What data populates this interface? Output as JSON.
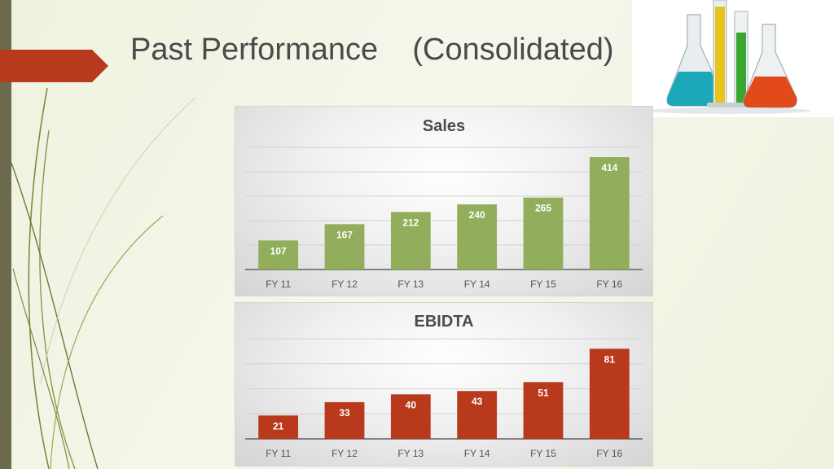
{
  "slide": {
    "title": "Past Performance    (Consolidated)",
    "accent_color": "#b8391c",
    "side_bar_color": "#6b6a4c",
    "image": "laboratory-glassware-photo"
  },
  "chart_data": [
    {
      "type": "bar",
      "title": "Sales",
      "categories": [
        "FY 11",
        "FY 12",
        "FY 13",
        "FY 14",
        "FY 15",
        "FY 16"
      ],
      "values": [
        107,
        167,
        212,
        240,
        265,
        414
      ],
      "data_labels": [
        "107",
        "167",
        "212",
        "240",
        "265",
        "414"
      ],
      "bar_color": "#92ad5c",
      "ylim": [
        0,
        450
      ],
      "grid": true,
      "legend": "none"
    },
    {
      "type": "bar",
      "title": "EBIDTA",
      "categories": [
        "FY 11",
        "FY 12",
        "FY 13",
        "FY 14",
        "FY 15",
        "FY 16"
      ],
      "values": [
        21,
        33,
        40,
        43,
        51,
        81
      ],
      "data_labels": [
        "21",
        "33",
        "40",
        "43",
        "51",
        "81"
      ],
      "bar_color": "#b8391c",
      "ylim": [
        0,
        90
      ],
      "grid": true,
      "legend": "none"
    }
  ]
}
